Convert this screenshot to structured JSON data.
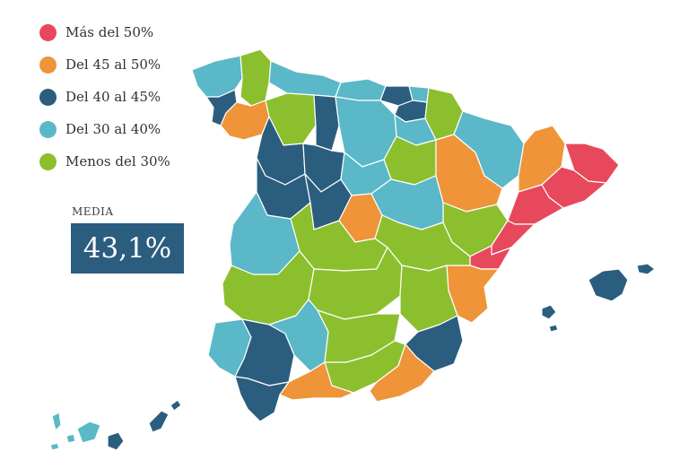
{
  "colors": {
    "over_50": "#e8485b",
    "from_45_to_50": "#ef9438",
    "from_40_to_45": "#2b5d7f",
    "from_30_to_40": "#5ab8c8",
    "under_30": "#8cbf2e"
  },
  "legend": [
    {
      "label": "Más del 50%",
      "color": "#e8485b"
    },
    {
      "label": "Del 45 al 50%",
      "color": "#ef9438"
    },
    {
      "label": "Del 40 al 45%",
      "color": "#2b5d7f"
    },
    {
      "label": "Del 30 al 40%",
      "color": "#5ab8c8"
    },
    {
      "label": "Menos del 30%",
      "color": "#8cbf2e"
    }
  ],
  "media": {
    "label": "MEDIA",
    "value": "43,1%"
  }
}
